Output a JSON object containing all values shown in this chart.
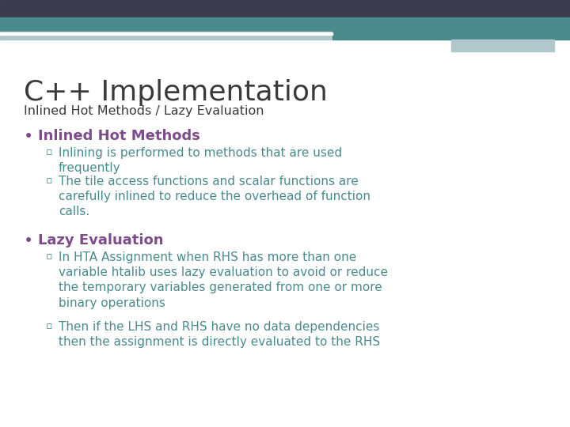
{
  "title": "C++ Implementation",
  "subtitle": "Inlined Hot Methods / Lazy Evaluation",
  "background_color": "#ffffff",
  "header_bar_color": "#3b3b4f",
  "header_teal_color": "#4a8a8c",
  "header_light_color": "#b0c8cc",
  "title_color": "#3a3a3a",
  "subtitle_color": "#3a3a3a",
  "bullet_color": "#7b4d8a",
  "sub_bullet_color": "#4a8a8c",
  "bullet1_title": "Inlined Hot Methods",
  "bullet1_sub1": "Inlining is performed to methods that are used\nfrequently",
  "bullet1_sub2": "The tile access functions and scalar functions are\ncarefully inlined to reduce the overhead of function\ncalls.",
  "bullet2_title": "Lazy Evaluation",
  "bullet2_sub1": "In HTA Assignment when RHS has more than one\nvariable htalib uses lazy evaluation to avoid or reduce\nthe temporary variables generated from one or more\nbinary operations",
  "bullet2_sub2": "Then if the LHS and RHS have no data dependencies\nthen the assignment is directly evaluated to the RHS"
}
